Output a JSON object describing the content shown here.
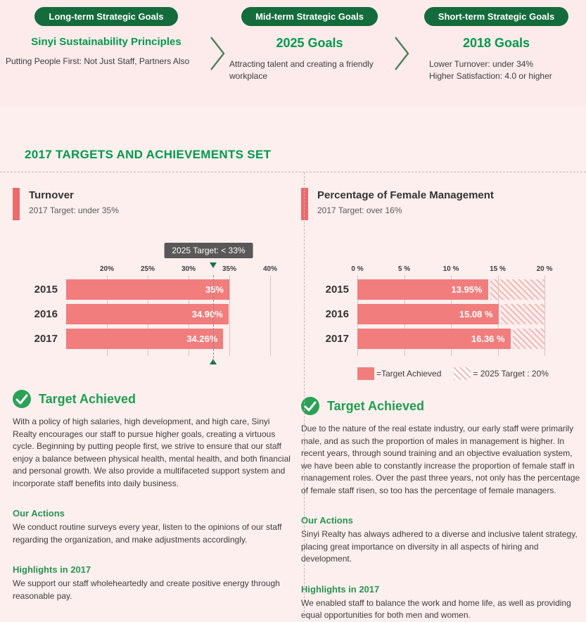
{
  "header": {
    "columns": [
      {
        "pill": "Long-term Strategic Goals",
        "title": "Sinyi Sustainability Principles",
        "desc_lines": [
          "Putting People First: Not Just Staff, Partners Also"
        ]
      },
      {
        "pill": "Mid-term Strategic Goals",
        "title": "2025 Goals",
        "desc_lines": [
          "Attracting talent and creating a friendly workplace"
        ]
      },
      {
        "pill": "Short-term Strategic Goals",
        "title": "2018 Goals",
        "desc_lines": [
          "Lower Turnover: under 34%",
          "Higher Satisfaction: 4.0 or higher"
        ]
      }
    ]
  },
  "section_title": "2017 TARGETS AND ACHIEVEMENTS SET",
  "panels": {
    "left": {
      "title": "Turnover",
      "target": "2017 Target: under 35%",
      "tooltip": "2025 Target: < 33%",
      "achieved_title": "Target Achieved",
      "body": "With a policy of high salaries, high development, and high care, Sinyi Realty encourages our staff to pursue higher goals, creating a virtuous cycle. Beginning by putting people first, we strive to ensure that our staff enjoy a balance between physical health, mental health, and both financial and personal growth. We also provide a multifaceted support system and incorporate staff benefits into daily business.",
      "actions_title": "Our Actions",
      "actions_body": "We conduct routine surveys every year, listen to the opinions of our staff regarding the organization, and make adjustments accordingly.",
      "highlights_title": "Highlights in 2017",
      "highlights_body": "We support our staff wholeheartedly and create positive energy through reasonable pay."
    },
    "right": {
      "title": "Percentage of Female Management",
      "target": "2017 Target: over 16%",
      "legend": [
        {
          "label": "=Target Achieved"
        },
        {
          "label": "= 2025 Target : 20%"
        }
      ],
      "achieved_title": "Target Achieved",
      "body": "Due to the nature of the real estate industry, our early staff were primarily male, and as such the proportion of males in management is higher. In recent years, through sound training and an objective evaluation system, we have been able to constantly increase the proportion of female staff in management roles. Over the past three years, not only has the percentage of female staff risen, so too has the percentage of female managers.",
      "actions_title": "Our Actions",
      "actions_body": "Sinyi Realty has always adhered to a diverse and inclusive talent strategy, placing great importance on diversity in all aspects of hiring and development.",
      "highlights_title": "Highlights in 2017",
      "highlights_body": "We enabled staff to balance the work and home life, as well as providing equal opportunities for both men and women."
    }
  },
  "chart_data": [
    {
      "type": "bar",
      "title": "Turnover",
      "orientation": "horizontal",
      "categories": [
        "2015",
        "2016",
        "2017"
      ],
      "values": [
        35,
        34.9,
        34.26
      ],
      "value_labels": [
        "35%",
        "34.90%",
        "34.26%"
      ],
      "xlim": [
        15,
        40
      ],
      "ticks": [
        20,
        25,
        30,
        35,
        40
      ],
      "tick_labels": [
        "20%",
        "25%",
        "30%",
        "35%",
        "40%"
      ],
      "target_2025": 33,
      "annotation": "2025 Target: < 33%",
      "grid": true,
      "legend_position": "none"
    },
    {
      "type": "bar",
      "title": "Percentage of Female Management",
      "orientation": "horizontal",
      "categories": [
        "2015",
        "2016",
        "2017"
      ],
      "values": [
        13.95,
        15.08,
        16.36
      ],
      "value_labels": [
        "13.95%",
        "15.08 %",
        "16.36 %"
      ],
      "xlim": [
        0,
        20
      ],
      "ticks": [
        0,
        5,
        10,
        15,
        20
      ],
      "tick_labels": [
        "0 %",
        "5 %",
        "10 %",
        "15 %",
        "20 %"
      ],
      "target_2025": 20,
      "hatch_to": 20,
      "grid": true,
      "legend_position": "bottom"
    }
  ],
  "colors": {
    "green": "#009a4e",
    "pill_green": "#146c3d",
    "bar_salmon": "#f17d7d",
    "accent_red": "#ec6a6d",
    "tooltip_gray": "#595757"
  }
}
